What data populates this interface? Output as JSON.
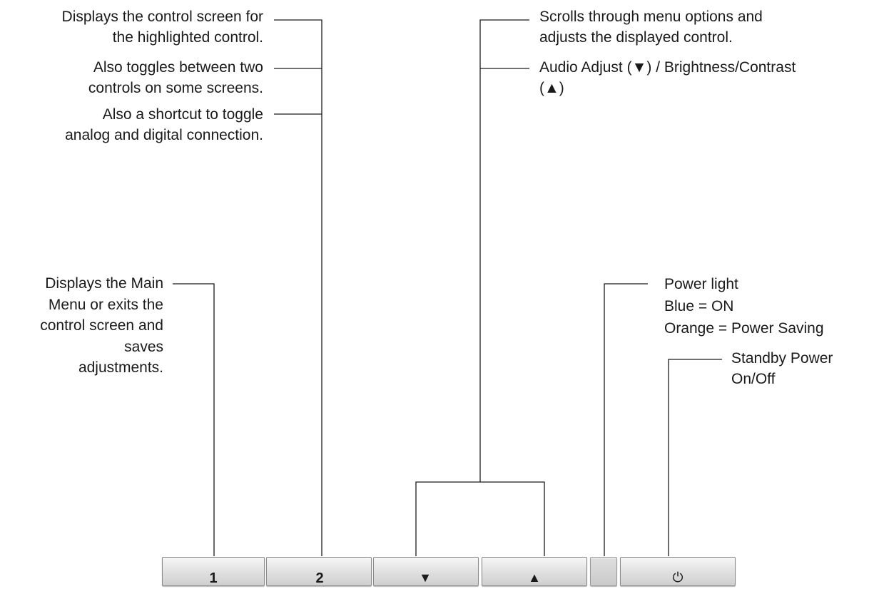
{
  "callouts": {
    "button2": {
      "line1": [
        "Displays the control screen for",
        "the highlighted control."
      ],
      "line2": [
        "Also toggles between two",
        "controls on some screens."
      ],
      "line3": [
        "Also a shortcut to toggle",
        "analog and digital connection."
      ]
    },
    "button1": [
      "Displays the Main",
      "Menu or exits the",
      "control screen and",
      "saves",
      "adjustments."
    ],
    "arrows": {
      "line1": [
        "Scrolls through menu options and",
        "adjusts the displayed control."
      ],
      "line2": [
        "Audio Adjust (▼) / Brightness/Contrast",
        "(▲)"
      ]
    },
    "power_light": [
      "Power light",
      "Blue = ON",
      "Orange = Power Saving"
    ],
    "standby": [
      "Standby Power",
      "On/Off"
    ]
  },
  "buttons": {
    "labels": [
      "1",
      "2",
      "▼",
      "▲",
      "⏻"
    ]
  }
}
